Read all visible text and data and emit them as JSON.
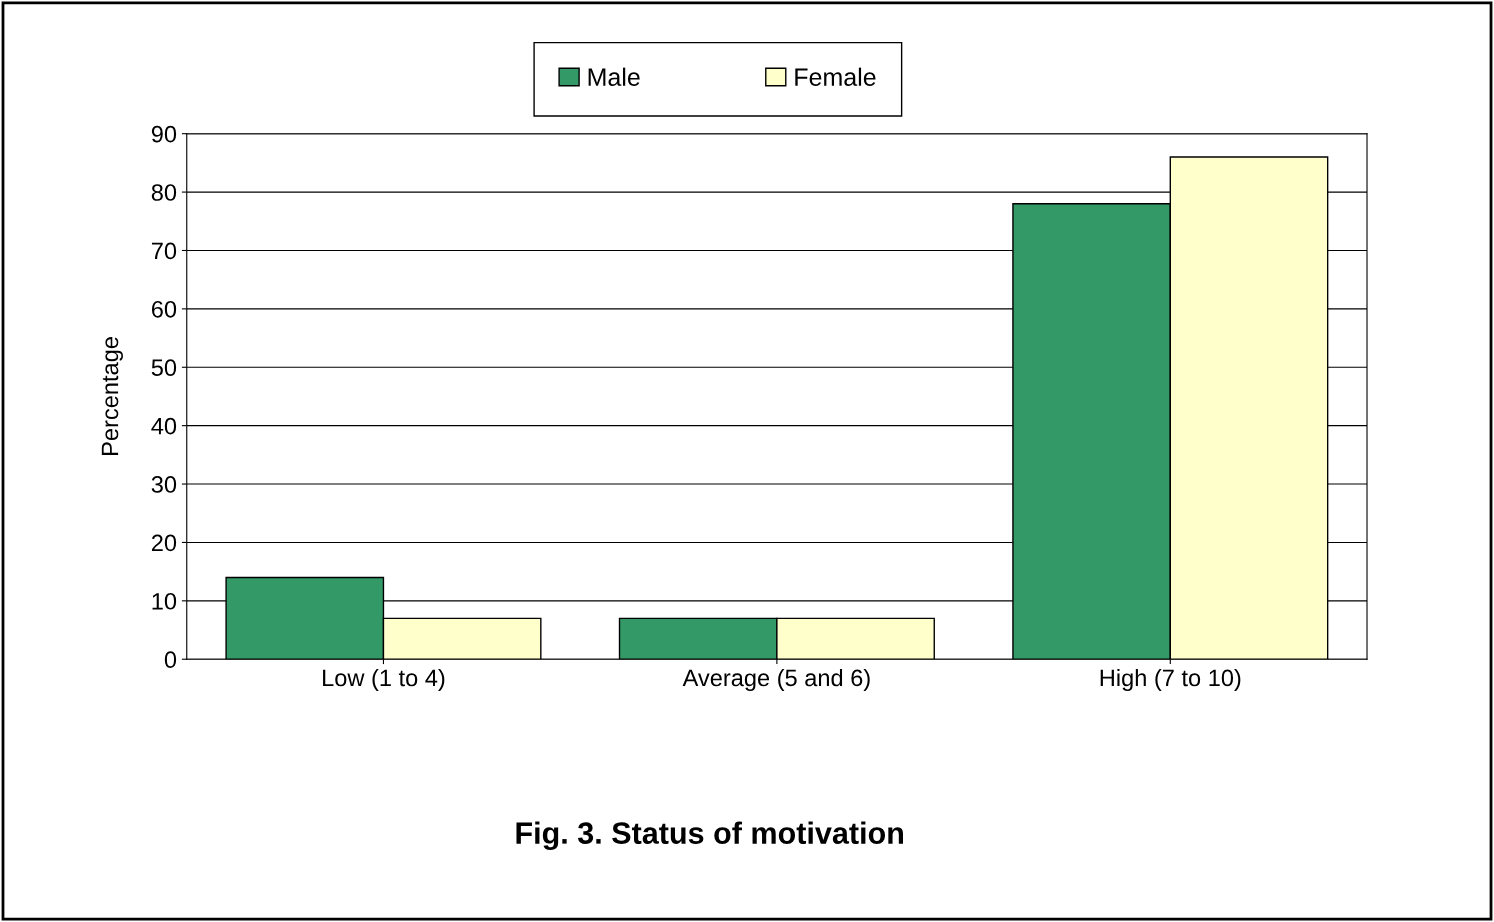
{
  "chart_data": {
    "type": "bar",
    "title": "Fig. 3. Status of motivation",
    "ylabel": "Percentage",
    "categories": [
      "Low (1 to 4)",
      "Average (5 and 6)",
      "High (7 to 10)"
    ],
    "series": [
      {
        "name": "Male",
        "color": "#339966",
        "values": [
          14,
          7,
          78
        ]
      },
      {
        "name": "Female",
        "color": "#ffffcc",
        "values": [
          7,
          7,
          86
        ]
      }
    ],
    "ylim": [
      0,
      90
    ],
    "yticks": [
      0,
      10,
      20,
      30,
      40,
      50,
      60,
      70,
      80,
      90
    ],
    "grid": "y",
    "legend": "top"
  }
}
